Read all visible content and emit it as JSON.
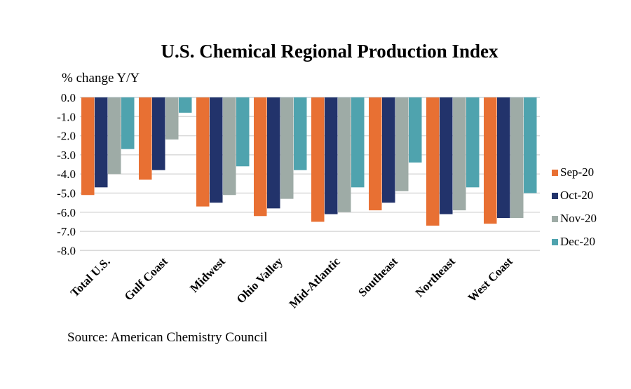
{
  "chart_data": {
    "type": "bar",
    "title": "U.S. Chemical Regional Production Index",
    "ylabel": "% change Y/Y",
    "source": "Source: American Chemistry Council",
    "ylim": [
      -8.0,
      0.0
    ],
    "yticks": [
      "0.0",
      "-1.0",
      "-2.0",
      "-3.0",
      "-4.0",
      "-5.0",
      "-6.0",
      "-7.0",
      "-8.0"
    ],
    "grid": true,
    "legend_position": "right",
    "categories": [
      "Total U.S.",
      "Gulf Coast",
      "Midwest",
      "Ohio Valley",
      "Mid-Atlantic",
      "Southeast",
      "Northeast",
      "West Coast"
    ],
    "series": [
      {
        "name": "Sep-20",
        "color": "#e87033",
        "values": [
          -5.1,
          -4.3,
          -5.7,
          -6.2,
          -6.5,
          -5.9,
          -6.7,
          -6.6
        ]
      },
      {
        "name": "Oct-20",
        "color": "#22336b",
        "values": [
          -4.7,
          -3.8,
          -5.5,
          -5.8,
          -6.1,
          -5.5,
          -6.1,
          -6.3
        ]
      },
      {
        "name": "Nov-20",
        "color": "#9eaba6",
        "values": [
          -4.0,
          -2.2,
          -5.1,
          -5.3,
          -6.0,
          -4.9,
          -5.9,
          -6.3
        ]
      },
      {
        "name": "Dec-20",
        "color": "#4fa3ae",
        "values": [
          -2.7,
          -0.8,
          -3.6,
          -3.8,
          -4.7,
          -3.4,
          -4.7,
          -5.0
        ]
      }
    ]
  }
}
